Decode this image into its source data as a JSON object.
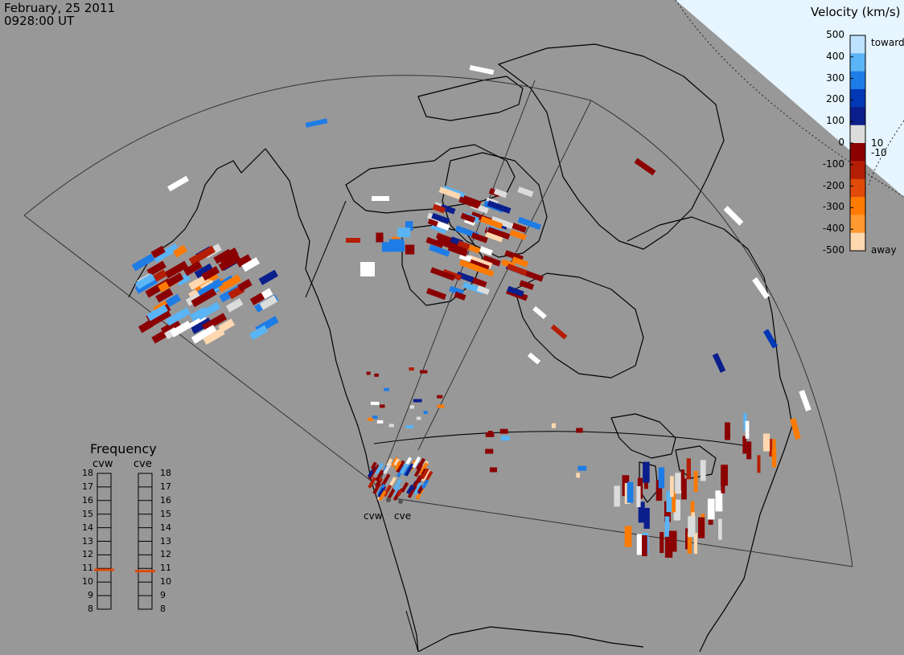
{
  "header": {
    "date": "February, 25 2011",
    "time": "0928:00 UT"
  },
  "colorbar": {
    "title": "Velocity (km/s)",
    "ticks": [
      "500",
      "400",
      "300",
      "200",
      "100",
      "0",
      "-100",
      "-200",
      "-300",
      "-400",
      "-500"
    ],
    "inner_labels": [
      "10",
      "-10"
    ],
    "toward_label": "toward",
    "away_label": "away",
    "colors": [
      "#ffd8b0",
      "#ff9930",
      "#ff7a00",
      "#e04a0a",
      "#b41e05",
      "#8b0000",
      "#dcdcdc",
      "#0a1e8c",
      "#0038b5",
      "#1e7ce6",
      "#5ab4f5",
      "#bce2ff"
    ]
  },
  "frequency": {
    "title": "Frequency",
    "radars": [
      "cvw",
      "cve"
    ],
    "scale": [
      "18",
      "17",
      "16",
      "15",
      "14",
      "13",
      "12",
      "11",
      "10",
      "9",
      "8"
    ],
    "values_mhz": {
      "cvw": 10.9,
      "cve": 10.8
    },
    "marker_color": "#e04a0a"
  },
  "radar_sites": [
    "cvw",
    "cve"
  ],
  "map": {
    "projection_view": "Polar stereographic view of North America with SuperDARN radar fields of view",
    "background_color": "#989898",
    "polar_cap_color": "#e6f5ff"
  }
}
